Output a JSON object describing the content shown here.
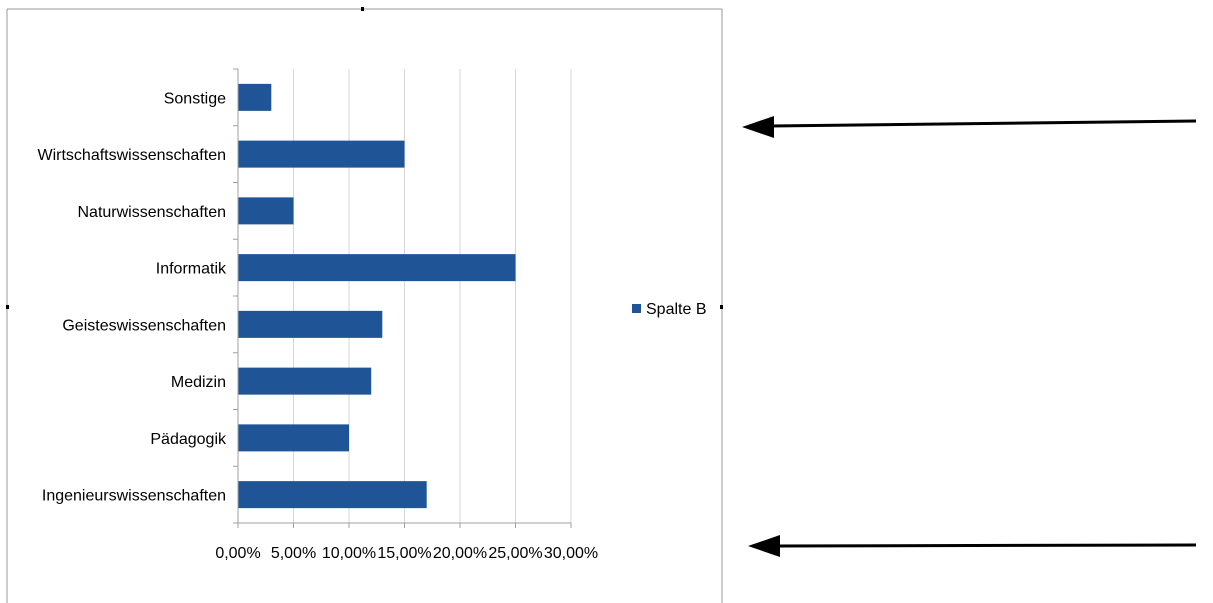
{
  "chart_data": {
    "type": "bar",
    "orientation": "horizontal",
    "categories": [
      "Sonstige",
      "Wirtschaftswissenschaften",
      "Naturwissenschaften",
      "Informatik",
      "Geisteswissenschaften",
      "Medizin",
      "Pädagogik",
      "Ingenieurswissenschaften"
    ],
    "series": [
      {
        "name": "Spalte B",
        "values": [
          3,
          15,
          5,
          25,
          13,
          12,
          10,
          17
        ]
      }
    ],
    "x_ticks": [
      "0,00%",
      "5,00%",
      "10,00%",
      "15,00%",
      "20,00%",
      "25,00%",
      "30,00%"
    ],
    "xlim": [
      0,
      30
    ],
    "unit": "percent",
    "grid": "vertical",
    "legend_position": "right",
    "bar_color": "#1f5597"
  },
  "annotations": {
    "arrows": [
      "arrow-pointing-left",
      "arrow-pointing-left"
    ]
  }
}
